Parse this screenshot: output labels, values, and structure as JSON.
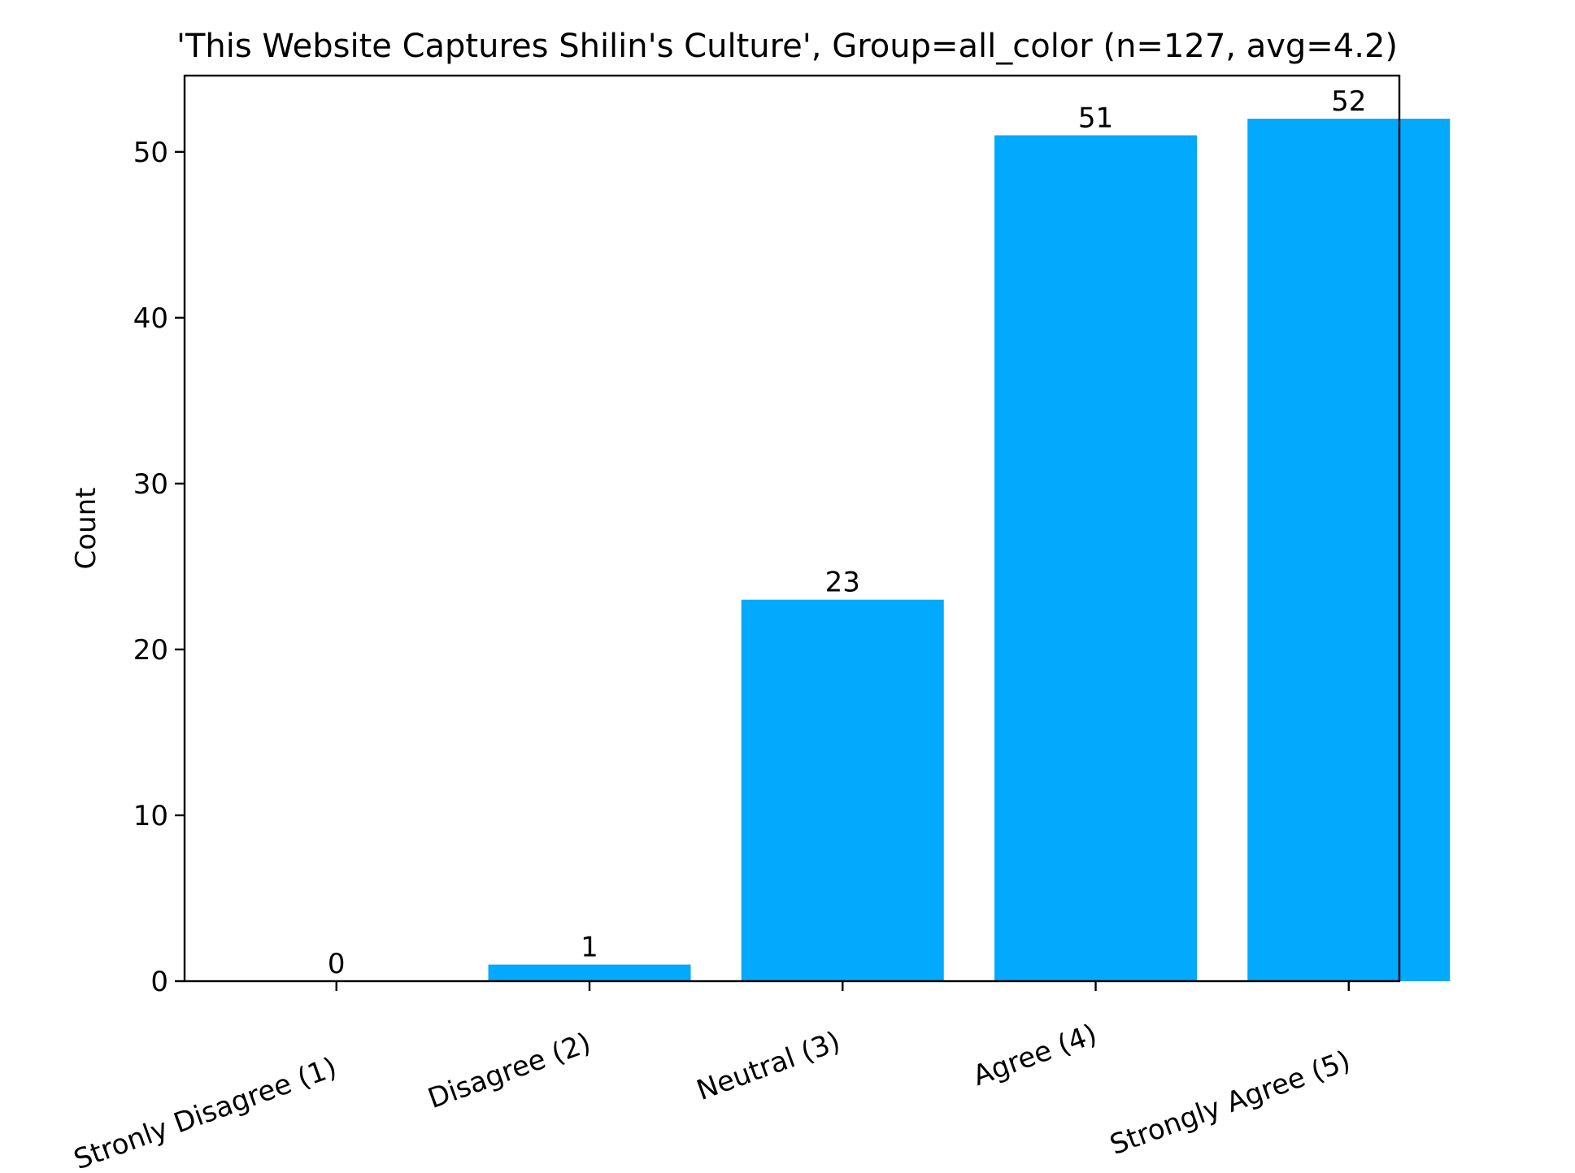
{
  "chart_data": {
    "type": "bar",
    "title": "'This Website Captures Shilin's Culture', Group=all_color (n=127, avg=4.2)",
    "xlabel": "",
    "ylabel": "Count",
    "categories": [
      "Stronly Disagree (1)",
      "Disagree (2)",
      "Neutral (3)",
      "Agree (4)",
      "Strongly Agree (5)"
    ],
    "values": [
      0,
      1,
      23,
      51,
      52
    ],
    "ylim": [
      0,
      54.6
    ],
    "yticks": [
      0,
      10,
      20,
      30,
      40,
      50
    ],
    "bar_color": "#03a9fc",
    "grid": false,
    "legend": "none"
  }
}
